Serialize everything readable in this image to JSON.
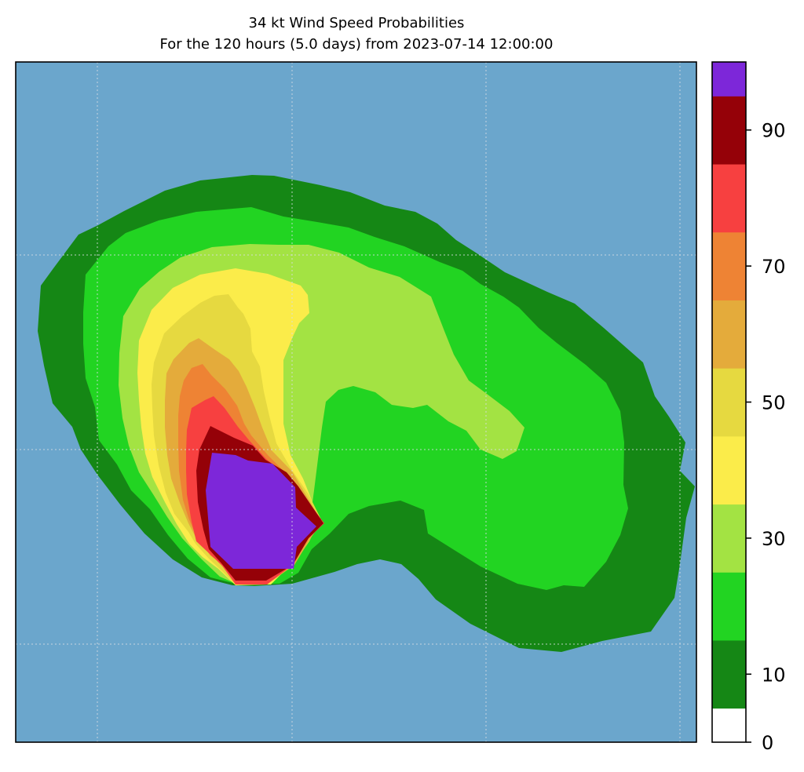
{
  "chart_data": {
    "type": "filled-contour-map",
    "title": "34 kt Wind Speed Probabilities",
    "subtitle": "For the 120 hours (5.0 days) from 2023-07-14 12:00:00",
    "units": "percent",
    "background_color": "#6ba6cc",
    "gridlines": true,
    "colorbar": {
      "range": [
        0,
        100
      ],
      "tick_values": [
        0,
        10,
        30,
        50,
        70,
        90
      ],
      "tick_labels": [
        "0",
        "10",
        "30",
        "50",
        "70",
        "90"
      ],
      "levels": [
        {
          "min": 0,
          "max": 5,
          "color": "#ffffff"
        },
        {
          "min": 5,
          "max": 15,
          "color": "#158715"
        },
        {
          "min": 15,
          "max": 25,
          "color": "#22d422"
        },
        {
          "min": 25,
          "max": 35,
          "color": "#a3e343"
        },
        {
          "min": 35,
          "max": 45,
          "color": "#fbec4a"
        },
        {
          "min": 45,
          "max": 55,
          "color": "#e6d940"
        },
        {
          "min": 55,
          "max": 65,
          "color": "#e4ab3b"
        },
        {
          "min": 65,
          "max": 75,
          "color": "#ee8334"
        },
        {
          "min": 75,
          "max": 85,
          "color": "#f74040"
        },
        {
          "min": 85,
          "max": 95,
          "color": "#950108"
        },
        {
          "min": 95,
          "max": 100,
          "color": "#7d27d9"
        }
      ]
    },
    "contour_regions": [
      {
        "threshold": 5,
        "color": "#158715",
        "description": "outer swath, curving from west-central across north to the east"
      },
      {
        "threshold": 15,
        "color": "#22d422"
      },
      {
        "threshold": 25,
        "color": "#a3e343"
      },
      {
        "threshold": 35,
        "color": "#fbec4a"
      },
      {
        "threshold": 45,
        "color": "#e6d940"
      },
      {
        "threshold": 55,
        "color": "#e4ab3b"
      },
      {
        "threshold": 65,
        "color": "#ee8334"
      },
      {
        "threshold": 75,
        "color": "#f74040"
      },
      {
        "threshold": 85,
        "color": "#950108"
      },
      {
        "threshold": 95,
        "color": "#7d27d9",
        "description": "core near the current storm position"
      }
    ]
  }
}
